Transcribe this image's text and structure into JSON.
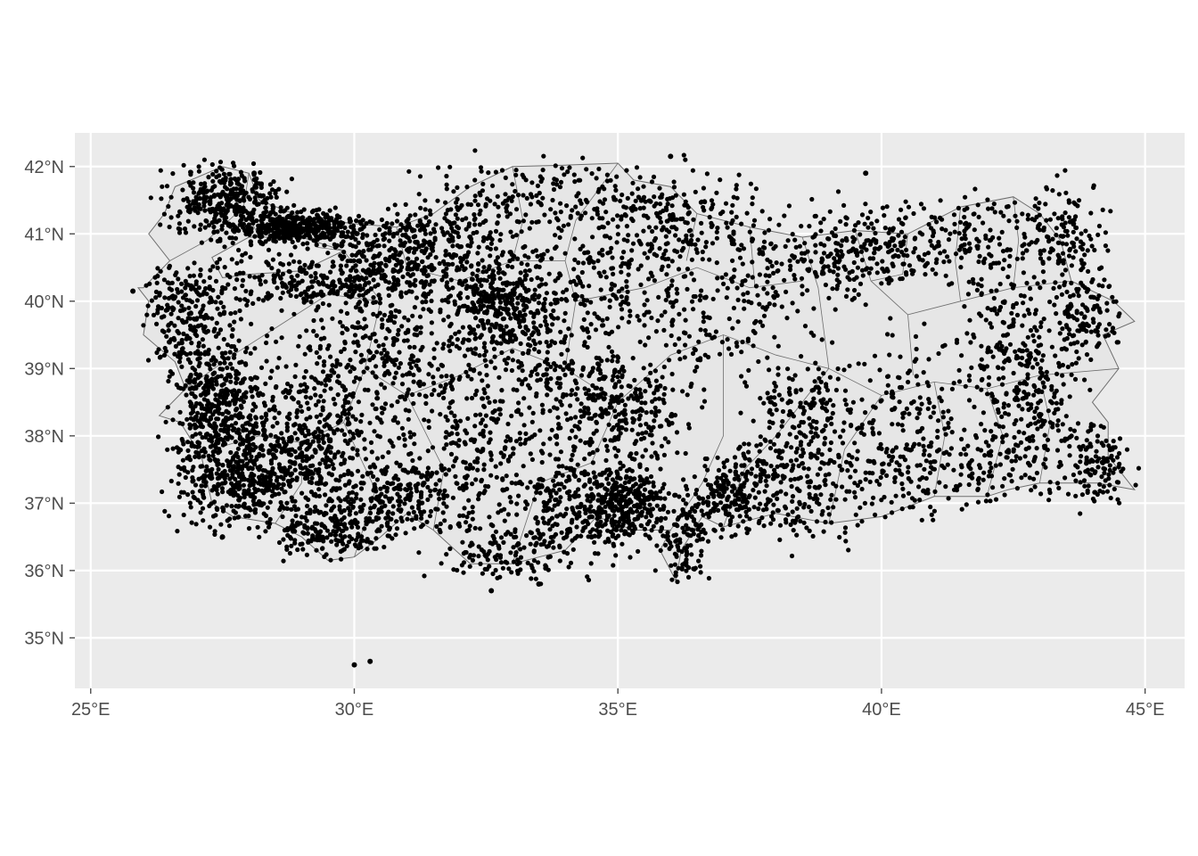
{
  "map": {
    "type": "scatter-map",
    "xlim": [
      24.7,
      45.75
    ],
    "ylim": [
      34.25,
      42.5
    ],
    "grid": true,
    "colors": {
      "panel": "#EBEBEB",
      "grid": "#FFFFFF",
      "land": "#E6E6E6",
      "border": "#6E6E6E",
      "points": "#000000",
      "ticks": "#4D4D4D"
    },
    "x_ticks": [
      {
        "value": 25,
        "label": "25°E"
      },
      {
        "value": 30,
        "label": "30°E"
      },
      {
        "value": 35,
        "label": "35°E"
      },
      {
        "value": 40,
        "label": "40°E"
      },
      {
        "value": 45,
        "label": "45°E"
      }
    ],
    "y_ticks": [
      {
        "value": 35,
        "label": "35°N"
      },
      {
        "value": 36,
        "label": "36°N"
      },
      {
        "value": 37,
        "label": "37°N"
      },
      {
        "value": 38,
        "label": "38°N"
      },
      {
        "value": 39,
        "label": "39°N"
      },
      {
        "value": 40,
        "label": "40°N"
      },
      {
        "value": 41,
        "label": "41°N"
      },
      {
        "value": 42,
        "label": "42°N"
      }
    ],
    "outline": [
      [
        26.0,
        40.2
      ],
      [
        26.5,
        40.6
      ],
      [
        26.1,
        41.0
      ],
      [
        26.4,
        41.3
      ],
      [
        26.6,
        41.7
      ],
      [
        27.5,
        42.0
      ],
      [
        28.0,
        41.9
      ],
      [
        28.2,
        41.5
      ],
      [
        29.0,
        41.25
      ],
      [
        30.0,
        41.15
      ],
      [
        30.8,
        41.1
      ],
      [
        31.5,
        41.3
      ],
      [
        32.2,
        41.7
      ],
      [
        33.0,
        42.0
      ],
      [
        34.0,
        42.02
      ],
      [
        35.0,
        42.05
      ],
      [
        35.3,
        41.8
      ],
      [
        36.0,
        41.7
      ],
      [
        36.5,
        41.3
      ],
      [
        37.5,
        41.1
      ],
      [
        38.5,
        40.95
      ],
      [
        39.5,
        41.05
      ],
      [
        40.5,
        41.0
      ],
      [
        41.5,
        41.4
      ],
      [
        42.5,
        41.55
      ],
      [
        43.0,
        41.3
      ],
      [
        43.4,
        40.9
      ],
      [
        43.6,
        40.3
      ],
      [
        44.4,
        40.0
      ],
      [
        44.8,
        39.7
      ],
      [
        44.2,
        39.5
      ],
      [
        44.5,
        39.0
      ],
      [
        44.0,
        38.5
      ],
      [
        44.3,
        38.2
      ],
      [
        44.3,
        37.7
      ],
      [
        44.8,
        37.2
      ],
      [
        44.1,
        37.3
      ],
      [
        43.0,
        37.3
      ],
      [
        42.4,
        37.2
      ],
      [
        42.0,
        37.1
      ],
      [
        41.0,
        37.1
      ],
      [
        40.0,
        36.8
      ],
      [
        39.0,
        36.7
      ],
      [
        38.0,
        36.85
      ],
      [
        37.0,
        36.65
      ],
      [
        36.6,
        36.8
      ],
      [
        36.2,
        36.3
      ],
      [
        36.1,
        35.85
      ],
      [
        35.8,
        36.3
      ],
      [
        36.0,
        36.6
      ],
      [
        35.3,
        36.6
      ],
      [
        34.6,
        36.8
      ],
      [
        34.0,
        36.3
      ],
      [
        33.0,
        36.1
      ],
      [
        32.2,
        36.1
      ],
      [
        31.5,
        36.6
      ],
      [
        31.0,
        36.85
      ],
      [
        30.5,
        36.5
      ],
      [
        30.0,
        36.2
      ],
      [
        29.5,
        36.15
      ],
      [
        29.0,
        36.5
      ],
      [
        28.5,
        36.7
      ],
      [
        27.7,
        36.8
      ],
      [
        27.3,
        37.0
      ],
      [
        27.1,
        37.7
      ],
      [
        26.7,
        38.2
      ],
      [
        26.3,
        38.3
      ],
      [
        26.8,
        38.7
      ],
      [
        26.6,
        39.1
      ],
      [
        26.0,
        39.5
      ],
      [
        26.1,
        40.0
      ],
      [
        25.9,
        40.2
      ]
    ],
    "marmara_sea": [
      [
        27.3,
        40.65
      ],
      [
        28.0,
        40.95
      ],
      [
        29.0,
        40.95
      ],
      [
        29.8,
        40.75
      ],
      [
        29.0,
        40.45
      ],
      [
        28.0,
        40.4
      ],
      [
        27.5,
        40.35
      ]
    ],
    "boundaries": [
      [
        [
          28.0,
          41.9
        ],
        [
          27.9,
          41.4
        ],
        [
          28.2,
          40.95
        ]
      ],
      [
        [
          26.5,
          40.6
        ],
        [
          27.2,
          40.9
        ],
        [
          27.9,
          41.4
        ]
      ],
      [
        [
          29.0,
          41.25
        ],
        [
          29.3,
          40.8
        ],
        [
          29.8,
          40.75
        ],
        [
          30.5,
          40.0
        ],
        [
          30.2,
          39.0
        ]
      ],
      [
        [
          26.8,
          38.7
        ],
        [
          27.7,
          39.2
        ],
        [
          28.5,
          39.6
        ],
        [
          29.5,
          40.1
        ],
        [
          30.5,
          40.0
        ]
      ],
      [
        [
          27.3,
          37.8
        ],
        [
          28.2,
          38.0
        ],
        [
          29.0,
          37.9
        ],
        [
          29.8,
          38.2
        ],
        [
          30.2,
          39.0
        ]
      ],
      [
        [
          28.5,
          36.7
        ],
        [
          29.0,
          37.3
        ],
        [
          29.0,
          37.9
        ]
      ],
      [
        [
          30.0,
          36.2
        ],
        [
          30.4,
          37.2
        ],
        [
          29.8,
          38.2
        ]
      ],
      [
        [
          30.2,
          39.0
        ],
        [
          31.0,
          38.6
        ],
        [
          32.0,
          38.9
        ],
        [
          33.0,
          39.3
        ],
        [
          34.0,
          39.0
        ]
      ],
      [
        [
          31.5,
          36.6
        ],
        [
          31.7,
          37.5
        ],
        [
          31.0,
          38.6
        ]
      ],
      [
        [
          30.8,
          41.1
        ],
        [
          31.0,
          40.5
        ],
        [
          32.0,
          40.3
        ],
        [
          33.0,
          40.6
        ],
        [
          34.0,
          40.6
        ]
      ],
      [
        [
          33.0,
          42.0
        ],
        [
          33.2,
          41.2
        ],
        [
          33.0,
          40.6
        ]
      ],
      [
        [
          33.0,
          36.1
        ],
        [
          33.5,
          37.3
        ],
        [
          34.5,
          37.6
        ],
        [
          35.0,
          38.5
        ],
        [
          34.0,
          39.0
        ]
      ],
      [
        [
          34.0,
          39.0
        ],
        [
          34.2,
          40.0
        ],
        [
          34.0,
          40.6
        ],
        [
          34.2,
          41.2
        ],
        [
          35.0,
          42.05
        ]
      ],
      [
        [
          35.0,
          38.5
        ],
        [
          36.0,
          39.2
        ],
        [
          37.0,
          39.5
        ],
        [
          38.0,
          39.2
        ],
        [
          39.0,
          39.0
        ]
      ],
      [
        [
          34.2,
          40.0
        ],
        [
          35.5,
          40.2
        ],
        [
          36.5,
          40.5
        ],
        [
          37.5,
          40.2
        ],
        [
          38.5,
          40.3
        ]
      ],
      [
        [
          36.5,
          41.3
        ],
        [
          36.3,
          40.6
        ]
      ],
      [
        [
          37.5,
          41.1
        ],
        [
          37.6,
          40.2
        ]
      ],
      [
        [
          36.0,
          36.6
        ],
        [
          36.6,
          37.3
        ],
        [
          37.0,
          38.0
        ],
        [
          37.0,
          39.5
        ]
      ],
      [
        [
          37.0,
          36.65
        ],
        [
          37.4,
          37.5
        ],
        [
          38.0,
          38.0
        ],
        [
          39.0,
          39.0
        ]
      ],
      [
        [
          38.5,
          40.95
        ],
        [
          38.8,
          40.2
        ],
        [
          39.0,
          39.0
        ]
      ],
      [
        [
          39.5,
          41.05
        ],
        [
          39.8,
          40.3
        ],
        [
          40.5,
          39.8
        ],
        [
          41.5,
          40.0
        ],
        [
          42.5,
          40.2
        ],
        [
          43.6,
          40.3
        ]
      ],
      [
        [
          39.0,
          39.0
        ],
        [
          40.0,
          38.6
        ],
        [
          41.0,
          38.8
        ],
        [
          42.0,
          38.7
        ],
        [
          43.0,
          38.9
        ],
        [
          44.5,
          39.0
        ]
      ],
      [
        [
          39.0,
          36.7
        ],
        [
          39.3,
          37.8
        ],
        [
          40.0,
          38.6
        ]
      ],
      [
        [
          40.5,
          39.8
        ],
        [
          40.6,
          38.9
        ]
      ],
      [
        [
          41.0,
          37.1
        ],
        [
          41.2,
          38.0
        ],
        [
          41.0,
          38.8
        ]
      ],
      [
        [
          42.0,
          37.1
        ],
        [
          42.3,
          38.0
        ],
        [
          42.0,
          38.7
        ]
      ],
      [
        [
          43.0,
          37.3
        ],
        [
          43.2,
          38.2
        ],
        [
          43.0,
          38.9
        ]
      ],
      [
        [
          42.5,
          41.55
        ],
        [
          42.6,
          40.9
        ],
        [
          42.5,
          40.2
        ]
      ],
      [
        [
          41.5,
          41.4
        ],
        [
          41.4,
          40.6
        ],
        [
          41.5,
          40.0
        ]
      ],
      [
        [
          40.5,
          41.0
        ],
        [
          40.4,
          40.4
        ],
        [
          39.8,
          40.3
        ]
      ]
    ],
    "point_clusters": [
      {
        "lon": 27.5,
        "lat": 41.5,
        "sx": 0.5,
        "sy": 0.25,
        "n": 320
      },
      {
        "lon": 28.9,
        "lat": 41.1,
        "sx": 0.6,
        "sy": 0.12,
        "n": 420
      },
      {
        "lon": 29.5,
        "lat": 40.3,
        "sx": 1.2,
        "sy": 0.25,
        "n": 340
      },
      {
        "lon": 26.8,
        "lat": 39.8,
        "sx": 0.4,
        "sy": 0.4,
        "n": 220
      },
      {
        "lon": 27.4,
        "lat": 38.5,
        "sx": 0.4,
        "sy": 0.5,
        "n": 420
      },
      {
        "lon": 27.8,
        "lat": 37.3,
        "sx": 0.6,
        "sy": 0.35,
        "n": 340
      },
      {
        "lon": 29.0,
        "lat": 37.6,
        "sx": 0.6,
        "sy": 0.4,
        "n": 280
      },
      {
        "lon": 29.4,
        "lat": 38.5,
        "sx": 0.7,
        "sy": 0.5,
        "n": 240
      },
      {
        "lon": 29.6,
        "lat": 36.6,
        "sx": 0.5,
        "sy": 0.2,
        "n": 180
      },
      {
        "lon": 30.8,
        "lat": 37.1,
        "sx": 0.6,
        "sy": 0.3,
        "n": 240
      },
      {
        "lon": 30.5,
        "lat": 39.5,
        "sx": 0.6,
        "sy": 0.5,
        "n": 200
      },
      {
        "lon": 31.0,
        "lat": 40.8,
        "sx": 0.6,
        "sy": 0.3,
        "n": 220
      },
      {
        "lon": 32.3,
        "lat": 40.9,
        "sx": 0.7,
        "sy": 0.5,
        "n": 200
      },
      {
        "lon": 32.8,
        "lat": 39.9,
        "sx": 0.5,
        "sy": 0.35,
        "n": 330
      },
      {
        "lon": 31.8,
        "lat": 38.6,
        "sx": 0.8,
        "sy": 0.6,
        "n": 180
      },
      {
        "lon": 33.0,
        "lat": 37.4,
        "sx": 0.8,
        "sy": 0.6,
        "n": 220
      },
      {
        "lon": 32.9,
        "lat": 36.3,
        "sx": 0.6,
        "sy": 0.2,
        "n": 110
      },
      {
        "lon": 34.2,
        "lat": 36.9,
        "sx": 0.6,
        "sy": 0.4,
        "n": 200
      },
      {
        "lon": 35.2,
        "lat": 37.0,
        "sx": 0.4,
        "sy": 0.3,
        "n": 280
      },
      {
        "lon": 35.2,
        "lat": 38.4,
        "sx": 0.6,
        "sy": 0.4,
        "n": 240
      },
      {
        "lon": 33.9,
        "lat": 38.9,
        "sx": 0.6,
        "sy": 0.5,
        "n": 160
      },
      {
        "lon": 34.6,
        "lat": 40.3,
        "sx": 0.8,
        "sy": 0.5,
        "n": 220
      },
      {
        "lon": 34.5,
        "lat": 41.6,
        "sx": 1.3,
        "sy": 0.25,
        "n": 160
      },
      {
        "lon": 36.3,
        "lat": 41.1,
        "sx": 0.8,
        "sy": 0.35,
        "n": 150
      },
      {
        "lon": 36.3,
        "lat": 36.5,
        "sx": 0.25,
        "sy": 0.35,
        "n": 120
      },
      {
        "lon": 37.2,
        "lat": 37.2,
        "sx": 0.4,
        "sy": 0.3,
        "n": 210
      },
      {
        "lon": 36.8,
        "lat": 39.6,
        "sx": 0.9,
        "sy": 0.5,
        "n": 140
      },
      {
        "lon": 38.5,
        "lat": 37.3,
        "sx": 0.6,
        "sy": 0.4,
        "n": 200
      },
      {
        "lon": 38.5,
        "lat": 38.4,
        "sx": 0.5,
        "sy": 0.4,
        "n": 150
      },
      {
        "lon": 38.2,
        "lat": 40.6,
        "sx": 0.8,
        "sy": 0.4,
        "n": 140
      },
      {
        "lon": 39.6,
        "lat": 40.8,
        "sx": 0.6,
        "sy": 0.3,
        "n": 160
      },
      {
        "lon": 40.5,
        "lat": 38.4,
        "sx": 0.6,
        "sy": 0.6,
        "n": 130
      },
      {
        "lon": 40.4,
        "lat": 37.5,
        "sx": 0.6,
        "sy": 0.4,
        "n": 110
      },
      {
        "lon": 41.5,
        "lat": 40.9,
        "sx": 0.6,
        "sy": 0.35,
        "n": 160
      },
      {
        "lon": 42.5,
        "lat": 39.5,
        "sx": 0.5,
        "sy": 0.6,
        "n": 170
      },
      {
        "lon": 43.0,
        "lat": 38.4,
        "sx": 0.5,
        "sy": 0.5,
        "n": 180
      },
      {
        "lon": 43.4,
        "lat": 41.0,
        "sx": 0.4,
        "sy": 0.4,
        "n": 140
      },
      {
        "lon": 44.0,
        "lat": 39.8,
        "sx": 0.3,
        "sy": 0.3,
        "n": 120
      },
      {
        "lon": 44.1,
        "lat": 37.5,
        "sx": 0.3,
        "sy": 0.3,
        "n": 110
      },
      {
        "lon": 42.0,
        "lat": 37.6,
        "sx": 0.6,
        "sy": 0.3,
        "n": 110
      }
    ],
    "outlier_points": [
      [
        30.0,
        34.6
      ],
      [
        30.3,
        34.65
      ],
      [
        32.6,
        35.7
      ],
      [
        33.5,
        35.8
      ],
      [
        36.0,
        42.15
      ],
      [
        39.7,
        41.9
      ],
      [
        28.1,
        41.9
      ],
      [
        34.5,
        36.5
      ],
      [
        27.5,
        36.5
      ],
      [
        25.8,
        40.15
      ]
    ]
  }
}
